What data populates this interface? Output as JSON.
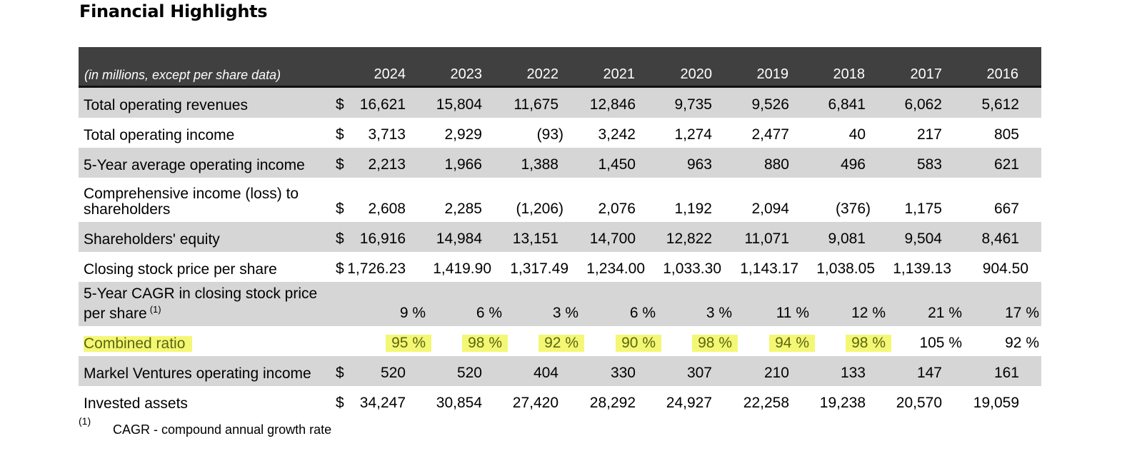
{
  "title": "Financial Highlights",
  "table": {
    "unit_label": "(in millions, except per share data)",
    "years": [
      "2024",
      "2023",
      "2022",
      "2021",
      "2020",
      "2019",
      "2018",
      "2017",
      "2016"
    ],
    "rows": [
      {
        "label": "Total operating revenues",
        "currency": "$",
        "values": [
          "16,621",
          "15,804",
          "11,675",
          "12,846",
          "9,735",
          "9,526",
          "6,841",
          "6,062",
          "5,612"
        ]
      },
      {
        "label": "Total operating income",
        "currency": "$",
        "values": [
          "3,713",
          "2,929",
          "(93)",
          "3,242",
          "1,274",
          "2,477",
          "40",
          "217",
          "805"
        ]
      },
      {
        "label": "5-Year average operating income",
        "currency": "$",
        "values": [
          "2,213",
          "1,966",
          "1,388",
          "1,450",
          "963",
          "880",
          "496",
          "583",
          "621"
        ]
      },
      {
        "label_line1": "Comprehensive income (loss) to",
        "label_line2": "shareholders",
        "currency": "$",
        "values": [
          "2,608",
          "2,285",
          "(1,206)",
          "2,076",
          "1,192",
          "2,094",
          "(376)",
          "1,175",
          "667"
        ]
      },
      {
        "label": "Shareholders' equity",
        "currency": "$",
        "values": [
          "16,916",
          "14,984",
          "13,151",
          "14,700",
          "12,822",
          "11,071",
          "9,081",
          "9,504",
          "8,461"
        ]
      },
      {
        "label": "Closing stock price per share",
        "currency": "$",
        "values": [
          "1,726.23",
          "1,419.90",
          "1,317.49",
          "1,234.00",
          "1,033.30",
          "1,143.17",
          "1,038.05",
          "1,139.13",
          "904.50"
        ]
      },
      {
        "label_line1": "5-Year CAGR in closing stock price",
        "label_line2": "per share",
        "label_sup": "(1)",
        "currency": "",
        "values": [
          "9 %",
          "6 %",
          "3 %",
          "6 %",
          "3 %",
          "11 %",
          "12 %",
          "21 %",
          "17 %"
        ]
      },
      {
        "label": "Combined ratio",
        "currency": "",
        "values": [
          "95 %",
          "98 %",
          "92 %",
          "90 %",
          "98 %",
          "94 %",
          "98 %",
          "105 %",
          "92 %"
        ]
      },
      {
        "label": "Markel Ventures operating income",
        "currency": "$",
        "values": [
          "520",
          "520",
          "404",
          "330",
          "307",
          "210",
          "133",
          "147",
          "161"
        ]
      },
      {
        "label": "Invested assets",
        "currency": "$",
        "values": [
          "34,247",
          "30,854",
          "27,420",
          "28,292",
          "24,927",
          "22,258",
          "19,238",
          "20,570",
          "19,059"
        ]
      }
    ]
  },
  "footnote": {
    "marker": "(1)",
    "text": "CAGR - compound annual growth rate"
  },
  "colors": {
    "header_bg": "#404040",
    "row_shade": "#d6d6d6",
    "highlight": "#f4f774"
  }
}
